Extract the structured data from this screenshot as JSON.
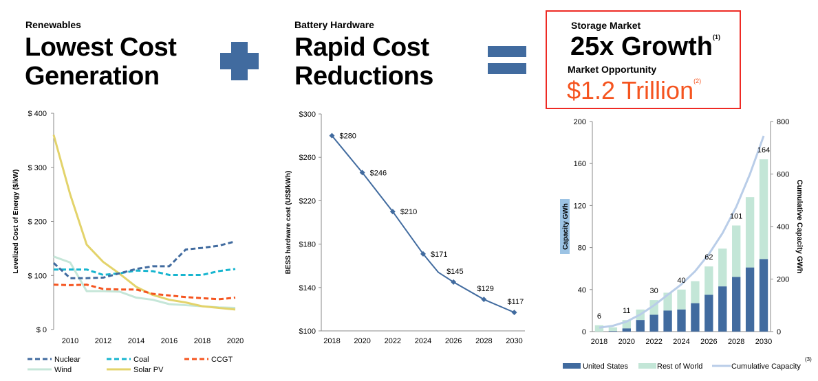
{
  "panels": {
    "renewables": {
      "eyebrow": "Renewables",
      "headline_line1": "Lowest Cost",
      "headline_line2": "Generation"
    },
    "battery": {
      "eyebrow": "Battery Hardware",
      "headline_line1": "Rapid Cost",
      "headline_line2": "Reductions"
    },
    "storage": {
      "eyebrow": "Storage Market",
      "headline": "25x Growth",
      "headline_footnote": "(1)",
      "sub_label": "Market Opportunity",
      "value": "$1.2 Trillion",
      "value_footnote": "(2)"
    },
    "operators": {
      "plus": "plus-icon",
      "equals": "equals-icon"
    }
  },
  "colors": {
    "accent_blue": "#416b9f",
    "callout_border": "#ee2a24",
    "value_orange": "#f5541f",
    "nuclear": "#416b9f",
    "coal": "#17b5cf",
    "ccgt": "#f5541f",
    "wind": "#c5e6d8",
    "solar": "#e3d36b",
    "us_bar": "#416b9f",
    "row_bar": "#c3e6d7",
    "cumulative": "#b9cde8"
  },
  "chart_data": [
    {
      "type": "line",
      "title": "",
      "xlabel": "",
      "ylabel": "Levelized Cost of Energy ($/kW)",
      "x": [
        2009,
        2010,
        2011,
        2012,
        2013,
        2014,
        2015,
        2016,
        2017,
        2018,
        2019,
        2020
      ],
      "xticks": [
        "2010",
        "2012",
        "2014",
        "2016",
        "2018",
        "2020"
      ],
      "yticks": [
        "$ 0",
        "$ 100",
        "$ 200",
        "$ 300",
        "$ 400"
      ],
      "ylim": [
        0,
        400
      ],
      "grid": false,
      "legend": "bottom",
      "series": [
        {
          "name": "Nuclear",
          "style": "dashed",
          "values": [
            123,
            95,
            95,
            96,
            104,
            112,
            117,
            117,
            148,
            151,
            155,
            163
          ]
        },
        {
          "name": "Coal",
          "style": "dashed",
          "values": [
            111,
            111,
            111,
            101,
            104,
            109,
            108,
            101,
            101,
            101,
            108,
            112
          ]
        },
        {
          "name": "CCGT",
          "style": "dashed",
          "values": [
            83,
            82,
            83,
            75,
            74,
            74,
            66,
            63,
            60,
            58,
            56,
            59
          ]
        },
        {
          "name": "Wind",
          "style": "solid",
          "values": [
            135,
            124,
            71,
            71,
            70,
            59,
            55,
            47,
            45,
            43,
            41,
            40
          ]
        },
        {
          "name": "Solar PV",
          "style": "solid",
          "values": [
            360,
            250,
            157,
            125,
            103,
            79,
            64,
            55,
            50,
            43,
            40,
            37
          ]
        }
      ]
    },
    {
      "type": "line",
      "title": "",
      "xlabel": "",
      "ylabel": "BESS hardware cost (US$/kWh)",
      "x": [
        2018,
        2020,
        2022,
        2024,
        2025,
        2026,
        2028,
        2030
      ],
      "values": [
        280,
        246,
        210,
        171,
        154,
        145,
        129,
        117
      ],
      "markers": [
        true,
        true,
        true,
        true,
        false,
        true,
        true,
        true
      ],
      "data_labels": [
        "$280",
        "$246",
        "$210",
        "$171",
        "",
        "$145",
        "$129",
        "$117"
      ],
      "xticks": [
        "2018",
        "2020",
        "2022",
        "2024",
        "2026",
        "2028",
        "2030"
      ],
      "yticks": [
        "$100",
        "$140",
        "$180",
        "$220",
        "$260",
        "$300"
      ],
      "ylim": [
        100,
        300
      ],
      "grid": false
    },
    {
      "type": "bar",
      "stacked": true,
      "title": "",
      "xlabel": "",
      "ylabel": "Capacity GWh",
      "y2label": "Cumulative Capacity GWh",
      "categories": [
        "2018",
        "2019",
        "2020",
        "2021",
        "2022",
        "2023",
        "2024",
        "2025",
        "2026",
        "2027",
        "2028",
        "2029",
        "2030"
      ],
      "xticks": [
        "2018",
        "2020",
        "2022",
        "2024",
        "2026",
        "2028",
        "2030"
      ],
      "yticks": [
        "0",
        "40",
        "80",
        "120",
        "160",
        "200"
      ],
      "y2ticks": [
        "0",
        "200",
        "400",
        "600",
        "800"
      ],
      "ylim": [
        0,
        200
      ],
      "y2lim": [
        0,
        800
      ],
      "series": [
        {
          "name": "United States",
          "values": [
            0,
            0.5,
            3,
            11,
            16,
            20,
            21,
            27,
            35,
            43,
            52,
            61,
            69
          ]
        },
        {
          "name": "Rest of World",
          "values": [
            6,
            3.5,
            8,
            10,
            14,
            17,
            19,
            21,
            27,
            36,
            49,
            67,
            95
          ]
        }
      ],
      "line_series": {
        "name": "Cumulative Capacity",
        "axis": "right",
        "values": [
          15,
          22,
          38,
          65,
          100,
          140,
          180,
          230,
          295,
          375,
          475,
          600,
          745
        ]
      },
      "total_labels": [
        "6",
        "",
        "11",
        "",
        "30",
        "",
        "40",
        "",
        "62",
        "",
        "101",
        "",
        "164"
      ],
      "legend": "bottom",
      "legend_footnote": "(3)"
    }
  ]
}
